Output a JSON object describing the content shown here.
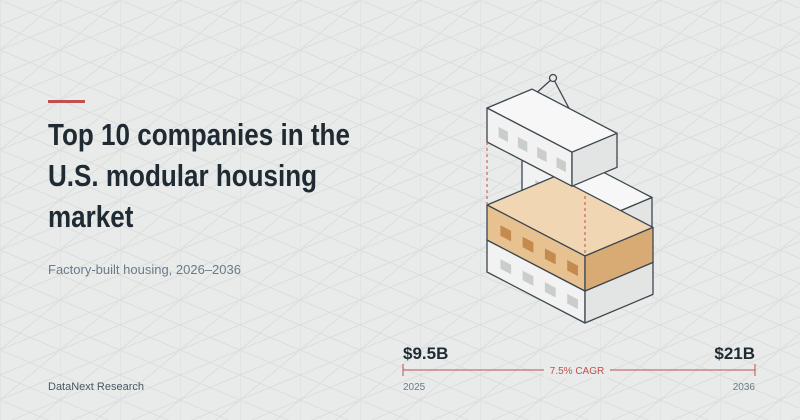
{
  "header": {
    "title": "Top 10 companies in the U.S. modular housing market",
    "subtitle": "Factory-built housing, 2026–2036"
  },
  "footer": {
    "source": "DataNext Research"
  },
  "timeline": {
    "start_value": "$9.5B",
    "end_value": "$21B",
    "growth": "7.5% CAGR",
    "start_year": "2025",
    "end_year": "2036"
  }
}
